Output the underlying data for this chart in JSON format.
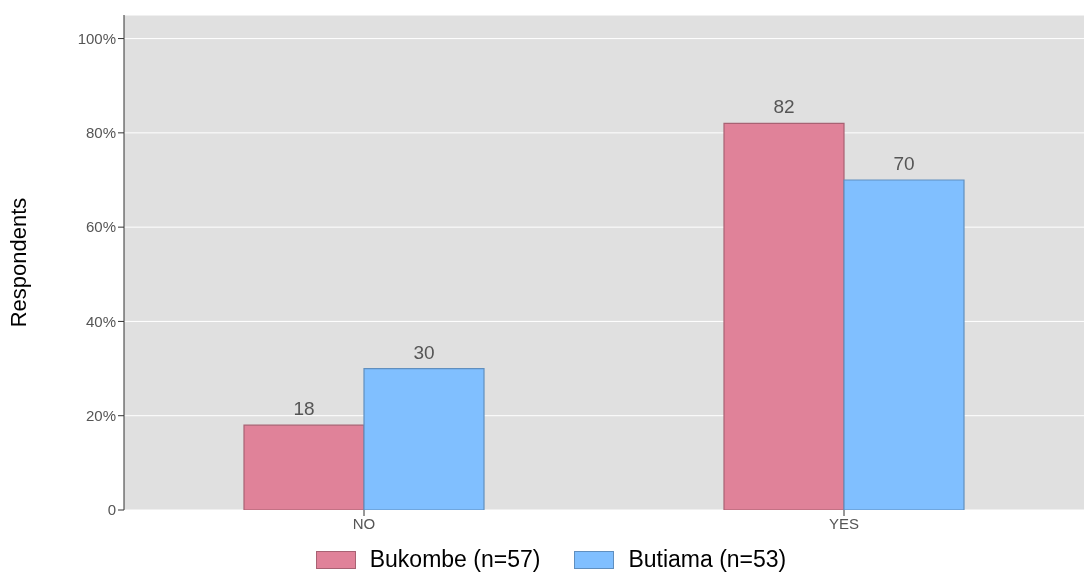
{
  "chart_data": {
    "type": "bar",
    "ylabel": "Respondents",
    "categories": [
      "NO",
      "YES"
    ],
    "series": [
      {
        "name": "Bukombe (n=57)",
        "color": "#e08299",
        "values": [
          18,
          82
        ]
      },
      {
        "name": "Butiama (n=53)",
        "color": "#80bfff",
        "values": [
          30,
          70
        ]
      }
    ],
    "ylim": [
      0,
      105
    ],
    "yticks": [
      0,
      {
        "value": 20,
        "label": "20%"
      },
      {
        "value": 40,
        "label": "40%"
      },
      {
        "value": 60,
        "label": "60%"
      },
      {
        "value": 80,
        "label": "80%"
      },
      {
        "value": 100,
        "label": "100%"
      }
    ],
    "grid": "y",
    "legend": "bottom",
    "data_labels": true
  }
}
